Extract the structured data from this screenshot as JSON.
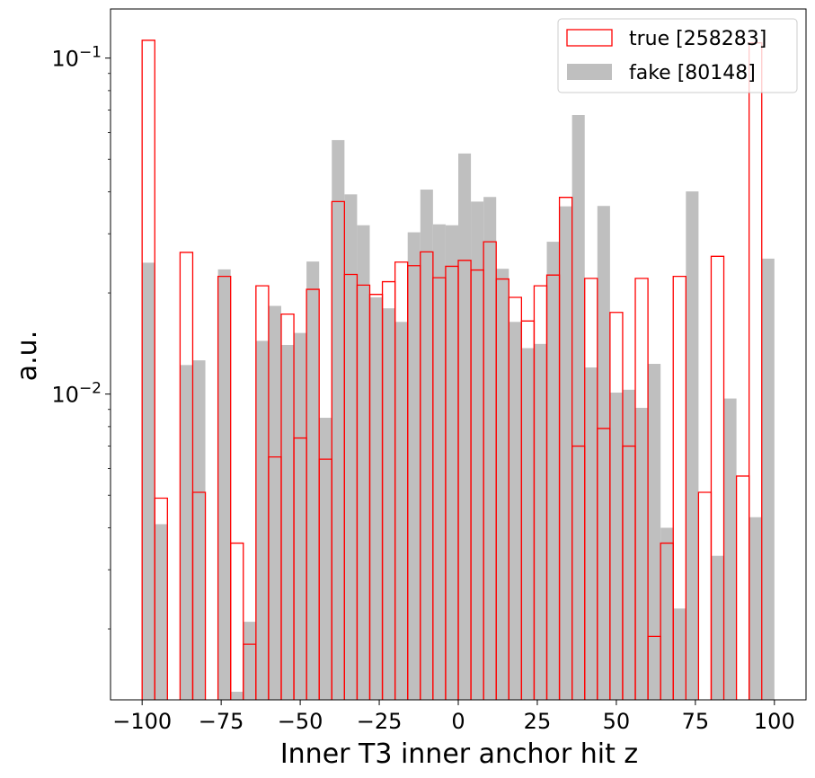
{
  "chart_data": {
    "type": "histogram",
    "xlabel": "Inner T3 inner anchor hit z",
    "ylabel": "a.u.",
    "yscale": "log",
    "xlim": [
      -110,
      110
    ],
    "ylim": [
      0.00123,
      0.14
    ],
    "x_ticks": [
      -100,
      -75,
      -50,
      -25,
      0,
      25,
      50,
      75,
      100
    ],
    "x_tick_labels": [
      "−100",
      "−75",
      "−50",
      "−25",
      "0",
      "25",
      "50",
      "75",
      "100"
    ],
    "y_ticks": [
      0.01,
      0.1
    ],
    "y_tick_labels": [
      {
        "base": "10",
        "exp": "−2"
      },
      {
        "base": "10",
        "exp": "−1"
      }
    ],
    "bin_edges_start": -100,
    "bin_width": 4,
    "legend": {
      "position": "top-right",
      "entries": [
        "true [258283]",
        "fake [80148]"
      ]
    },
    "series": [
      {
        "name": "true [258283]",
        "style": "step",
        "color": "#ff0000",
        "values": [
          0.113,
          0.0049,
          0,
          0.0264,
          0.0051,
          0,
          0.0224,
          0.0036,
          0.0018,
          0.021,
          0.0065,
          0.0173,
          0.0074,
          0.0205,
          0.0064,
          0.0374,
          0.0227,
          0.0211,
          0.0198,
          0.0216,
          0.0247,
          0.0241,
          0.0265,
          0.0222,
          0.024,
          0.025,
          0.0234,
          0.0284,
          0.022,
          0.0194,
          0.0165,
          0.021,
          0.0226,
          0.0385,
          0.007,
          0.0221,
          0.0079,
          0.0175,
          0.007,
          0.0221,
          0.0019,
          0.0036,
          0.0224,
          0,
          0.0051,
          0.0257,
          0,
          0.0057,
          0.111,
          0
        ]
      },
      {
        "name": "fake [80148]",
        "style": "filled",
        "color": "#bfbfbf",
        "values": [
          0.0246,
          0.0041,
          0,
          0.0122,
          0.0126,
          0,
          0.0235,
          0.0013,
          0.0021,
          0.0144,
          0.0183,
          0.014,
          0.0152,
          0.0248,
          0.0085,
          0.057,
          0.0393,
          0.0318,
          0.0194,
          0.018,
          0.0164,
          0.0303,
          0.0406,
          0.032,
          0.0318,
          0.052,
          0.0374,
          0.0386,
          0.0236,
          0.0164,
          0.0137,
          0.0141,
          0.0284,
          0.0362,
          0.0677,
          0.012,
          0.0363,
          0.0101,
          0.0103,
          0.0091,
          0.0123,
          0.004,
          0.0023,
          0.0401,
          0,
          0.0033,
          0.0097,
          0,
          0.0043,
          0.0253
        ]
      }
    ]
  }
}
